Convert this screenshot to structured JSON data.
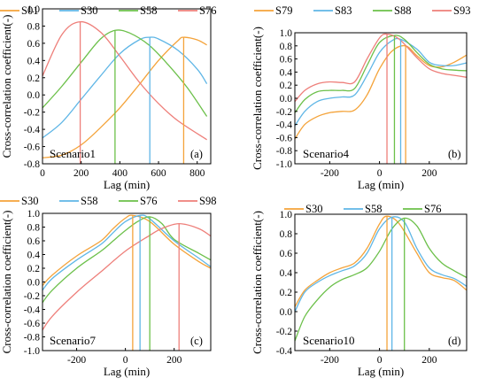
{
  "chart_data": [
    {
      "type": "line",
      "id": "a",
      "panel_label": "(a)",
      "scenario_label": "Scenario1",
      "xlabel": "Lag (min)",
      "ylabel": "Cross-correlation coefficient(-)",
      "xlim": [
        0,
        870
      ],
      "ylim": [
        -0.8,
        1.0
      ],
      "xticks": [
        0,
        200,
        400,
        600,
        800
      ],
      "yticks": [
        -0.8,
        -0.6,
        -0.4,
        -0.2,
        0.0,
        0.2,
        0.4,
        0.6,
        0.8,
        1.0
      ],
      "ytick_labels": [
        "-0.8",
        "-0.6",
        "-0.4",
        "-0.2",
        "0.0",
        "0.2",
        "0.4",
        "0.6",
        "0.8",
        "1.0"
      ],
      "series": [
        {
          "name": "S01",
          "color": "#f4a33a",
          "peak_lag": 730,
          "x": [
            0,
            100,
            200,
            300,
            400,
            500,
            600,
            700,
            730,
            800,
            850
          ],
          "y": [
            -0.73,
            -0.7,
            -0.58,
            -0.38,
            -0.15,
            0.12,
            0.4,
            0.63,
            0.67,
            0.64,
            0.58
          ]
        },
        {
          "name": "S30",
          "color": "#5fb6e6",
          "peak_lag": 555,
          "x": [
            0,
            100,
            200,
            300,
            400,
            500,
            555,
            600,
            700,
            800,
            850
          ],
          "y": [
            -0.5,
            -0.32,
            -0.05,
            0.22,
            0.48,
            0.64,
            0.67,
            0.65,
            0.52,
            0.3,
            0.13
          ]
        },
        {
          "name": "S58",
          "color": "#6cc04a",
          "peak_lag": 375,
          "x": [
            0,
            100,
            200,
            300,
            375,
            450,
            550,
            650,
            750,
            850
          ],
          "y": [
            -0.15,
            0.1,
            0.38,
            0.65,
            0.75,
            0.72,
            0.58,
            0.35,
            0.08,
            -0.25
          ]
        },
        {
          "name": "S76",
          "color": "#ee7f7a",
          "peak_lag": 195,
          "x": [
            0,
            100,
            195,
            300,
            400,
            500,
            600,
            700,
            850
          ],
          "y": [
            0.22,
            0.7,
            0.85,
            0.73,
            0.45,
            0.15,
            -0.1,
            -0.3,
            -0.52
          ]
        }
      ]
    },
    {
      "type": "line",
      "id": "b",
      "panel_label": "(b)",
      "scenario_label": "Scenario4",
      "xlabel": "Lag (min)",
      "ylabel": "Cross-correlation coefficient(-)",
      "xlim": [
        -340,
        350
      ],
      "ylim": [
        -1.0,
        1.0
      ],
      "xticks": [
        -200,
        0,
        200
      ],
      "yticks": [
        -1.0,
        -0.8,
        -0.6,
        -0.4,
        -0.2,
        0.0,
        0.2,
        0.4,
        0.6,
        0.8,
        1.0
      ],
      "ytick_labels": [
        "-1.0",
        "-0.8",
        "-0.6",
        "-0.4",
        "-0.2",
        "0.0",
        "0.2",
        "0.4",
        "0.6",
        "0.8",
        "1.0"
      ],
      "series": [
        {
          "name": "S79",
          "color": "#f4a33a",
          "peak_lag": 105,
          "x": [
            -340,
            -300,
            -250,
            -200,
            -150,
            -100,
            -50,
            0,
            50,
            105,
            150,
            200,
            250,
            300,
            350
          ],
          "y": [
            -0.62,
            -0.4,
            -0.28,
            -0.22,
            -0.2,
            -0.18,
            0.05,
            0.45,
            0.72,
            0.8,
            0.65,
            0.5,
            0.48,
            0.55,
            0.66
          ]
        },
        {
          "name": "S83",
          "color": "#5fb6e6",
          "peak_lag": 85,
          "x": [
            -340,
            -300,
            -250,
            -200,
            -150,
            -100,
            -50,
            0,
            50,
            85,
            150,
            200,
            250,
            300,
            350
          ],
          "y": [
            -0.42,
            -0.2,
            -0.05,
            0.0,
            0.02,
            0.05,
            0.35,
            0.7,
            0.88,
            0.9,
            0.75,
            0.55,
            0.5,
            0.5,
            0.54
          ]
        },
        {
          "name": "S88",
          "color": "#6cc04a",
          "peak_lag": 60,
          "x": [
            -340,
            -300,
            -250,
            -200,
            -150,
            -100,
            -50,
            0,
            60,
            100,
            150,
            200,
            250,
            300,
            350
          ],
          "y": [
            -0.22,
            -0.02,
            0.1,
            0.12,
            0.12,
            0.15,
            0.5,
            0.85,
            0.96,
            0.9,
            0.7,
            0.52,
            0.45,
            0.43,
            0.42
          ]
        },
        {
          "name": "S93",
          "color": "#ee7f7a",
          "peak_lag": 30,
          "x": [
            -340,
            -300,
            -250,
            -200,
            -150,
            -100,
            -50,
            0,
            30,
            80,
            150,
            200,
            250,
            300,
            350
          ],
          "y": [
            -0.05,
            0.12,
            0.22,
            0.25,
            0.24,
            0.25,
            0.6,
            0.92,
            0.98,
            0.9,
            0.62,
            0.45,
            0.38,
            0.35,
            0.32
          ]
        }
      ]
    },
    {
      "type": "line",
      "id": "c",
      "panel_label": "(c)",
      "scenario_label": "Scenario7",
      "xlabel": "Lag (min)",
      "ylabel": "Cross-correlation coefficient(-)",
      "xlim": [
        -340,
        350
      ],
      "ylim": [
        -1.0,
        1.0
      ],
      "xticks": [
        -200,
        0,
        200
      ],
      "yticks": [
        -1.0,
        -0.8,
        -0.6,
        -0.4,
        -0.2,
        0.0,
        0.2,
        0.4,
        0.6,
        0.8,
        1.0
      ],
      "ytick_labels": [
        "-1.0",
        "-0.8",
        "-0.6",
        "-0.4",
        "-0.2",
        "0.0",
        "0.2",
        "0.4",
        "0.6",
        "0.8",
        "1.0"
      ],
      "series": [
        {
          "name": "S30",
          "color": "#f4a33a",
          "peak_lag": 30,
          "x": [
            -340,
            -300,
            -200,
            -100,
            -50,
            0,
            30,
            100,
            200,
            300,
            350
          ],
          "y": [
            -0.05,
            0.1,
            0.38,
            0.6,
            0.78,
            0.93,
            0.97,
            0.88,
            0.55,
            0.3,
            0.2
          ]
        },
        {
          "name": "S58",
          "color": "#5fb6e6",
          "peak_lag": 60,
          "x": [
            -340,
            -300,
            -200,
            -100,
            -50,
            0,
            60,
            100,
            200,
            300,
            350
          ],
          "y": [
            -0.12,
            0.05,
            0.32,
            0.55,
            0.72,
            0.88,
            0.97,
            0.92,
            0.6,
            0.35,
            0.22
          ]
        },
        {
          "name": "S76",
          "color": "#6cc04a",
          "peak_lag": 100,
          "x": [
            -340,
            -300,
            -200,
            -100,
            -50,
            0,
            50,
            100,
            150,
            200,
            300,
            350
          ],
          "y": [
            -0.3,
            -0.12,
            0.2,
            0.45,
            0.6,
            0.75,
            0.88,
            0.95,
            0.85,
            0.62,
            0.42,
            0.32
          ]
        },
        {
          "name": "S98",
          "color": "#ee7f7a",
          "peak_lag": 220,
          "x": [
            -340,
            -300,
            -200,
            -100,
            0,
            100,
            150,
            220,
            300,
            350
          ],
          "y": [
            -0.7,
            -0.5,
            -0.15,
            0.15,
            0.45,
            0.68,
            0.78,
            0.85,
            0.78,
            0.67
          ]
        }
      ]
    },
    {
      "type": "line",
      "id": "d",
      "panel_label": "(d)",
      "scenario_label": "Scenario10",
      "xlabel": "Lag (min)",
      "ylabel": "Cross-correlation coefficient(-)",
      "xlim": [
        -340,
        350
      ],
      "ylim": [
        -0.4,
        1.0
      ],
      "xticks": [
        -200,
        0,
        200
      ],
      "yticks": [
        -0.4,
        -0.2,
        0.0,
        0.2,
        0.4,
        0.6,
        0.8,
        1.0
      ],
      "ytick_labels": [
        "-0.4",
        "-0.2",
        "0.0",
        "0.2",
        "0.4",
        "0.6",
        "0.8",
        "1.0"
      ],
      "series": [
        {
          "name": "S30",
          "color": "#f4a33a",
          "peak_lag": 30,
          "x": [
            -340,
            -300,
            -250,
            -200,
            -150,
            -100,
            -50,
            0,
            30,
            80,
            150,
            200,
            250,
            300,
            350
          ],
          "y": [
            0.05,
            0.22,
            0.32,
            0.4,
            0.45,
            0.5,
            0.65,
            0.9,
            0.98,
            0.9,
            0.6,
            0.4,
            0.35,
            0.32,
            0.22
          ]
        },
        {
          "name": "S58",
          "color": "#5fb6e6",
          "peak_lag": 50,
          "x": [
            -340,
            -300,
            -250,
            -200,
            -150,
            -100,
            -50,
            0,
            50,
            100,
            150,
            200,
            250,
            300,
            350
          ],
          "y": [
            0.0,
            0.2,
            0.3,
            0.37,
            0.42,
            0.47,
            0.6,
            0.85,
            0.97,
            0.92,
            0.65,
            0.45,
            0.38,
            0.34,
            0.26
          ]
        },
        {
          "name": "S76",
          "color": "#6cc04a",
          "peak_lag": 100,
          "x": [
            -340,
            -300,
            -250,
            -200,
            -150,
            -100,
            -50,
            0,
            50,
            100,
            150,
            200,
            250,
            300,
            350
          ],
          "y": [
            -0.3,
            -0.05,
            0.12,
            0.25,
            0.33,
            0.38,
            0.45,
            0.62,
            0.85,
            0.96,
            0.88,
            0.65,
            0.5,
            0.42,
            0.35
          ]
        }
      ]
    }
  ]
}
